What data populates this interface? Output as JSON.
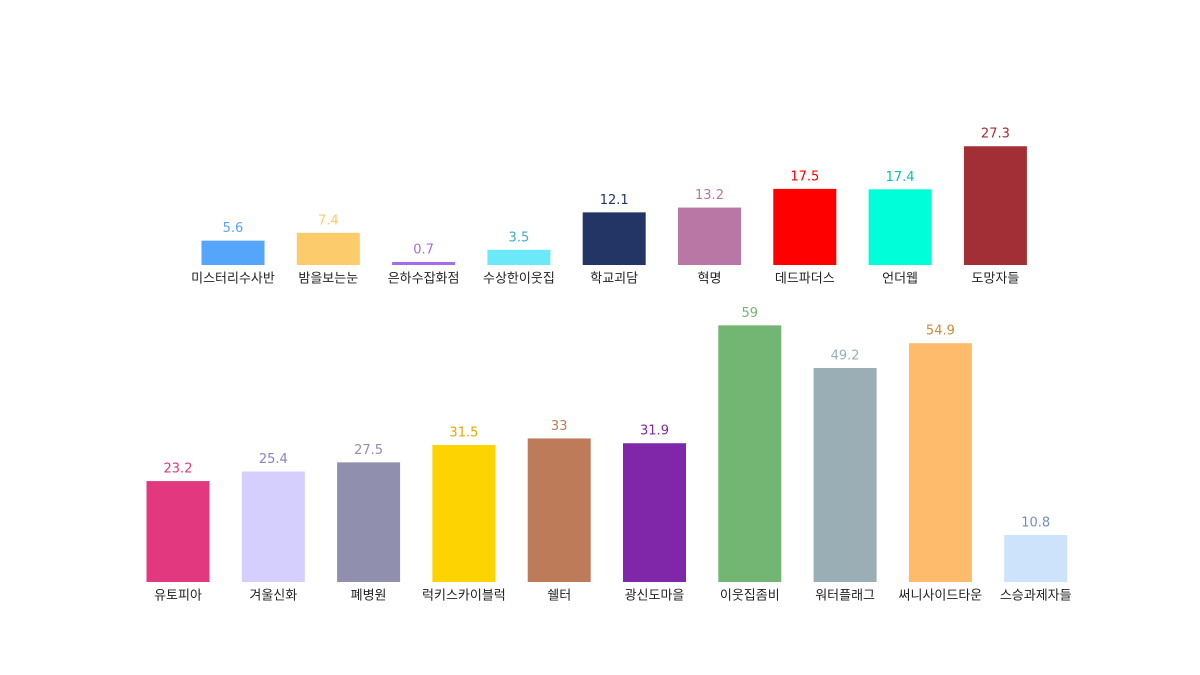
{
  "chart_data": [
    {
      "type": "bar",
      "categories": [
        "미스터리수사반",
        "밤을보는눈",
        "은하수잡화점",
        "수상한이웃집",
        "학교괴담",
        "혁명",
        "데드파더스",
        "언더웹",
        "도망자들"
      ],
      "values": [
        5.6,
        7.4,
        0.7,
        3.5,
        12.1,
        13.2,
        17.5,
        17.4,
        27.3
      ],
      "colors": [
        "#55a6fb",
        "#fccb6b",
        "#a56de9",
        "#6ce8fb",
        "#233565",
        "#b877a4",
        "#fe0000",
        "#00ffd8",
        "#a12f35"
      ],
      "label_colors": [
        "#55a6fb",
        "#fccb6b",
        "#a56de9",
        "#3ab0c8",
        "#233565",
        "#b877a4",
        "#fe0000",
        "#00c8aa",
        "#a12f35"
      ]
    },
    {
      "type": "bar",
      "categories": [
        "유토피아",
        "겨울신화",
        "폐병원",
        "럭키스카이블럭",
        "쉘터",
        "광신도마을",
        "이웃집좀비",
        "워터플래그",
        "써니사이드타운",
        "스승과제자들"
      ],
      "values": [
        23.2,
        25.4,
        27.5,
        31.5,
        33,
        31.9,
        59,
        49.2,
        54.9,
        10.8
      ],
      "colors": [
        "#e13880",
        "#d4cffd",
        "#908fae",
        "#fdd301",
        "#be7b5a",
        "#7f27a8",
        "#73b673",
        "#9aafb5",
        "#fdbb6b",
        "#cde3fb"
      ],
      "label_colors": [
        "#e13880",
        "#8a80c9",
        "#908fae",
        "#e8a800",
        "#be7b5a",
        "#7f27a8",
        "#73b673",
        "#9aafb5",
        "#c98a3a",
        "#6f8fc0"
      ]
    }
  ]
}
